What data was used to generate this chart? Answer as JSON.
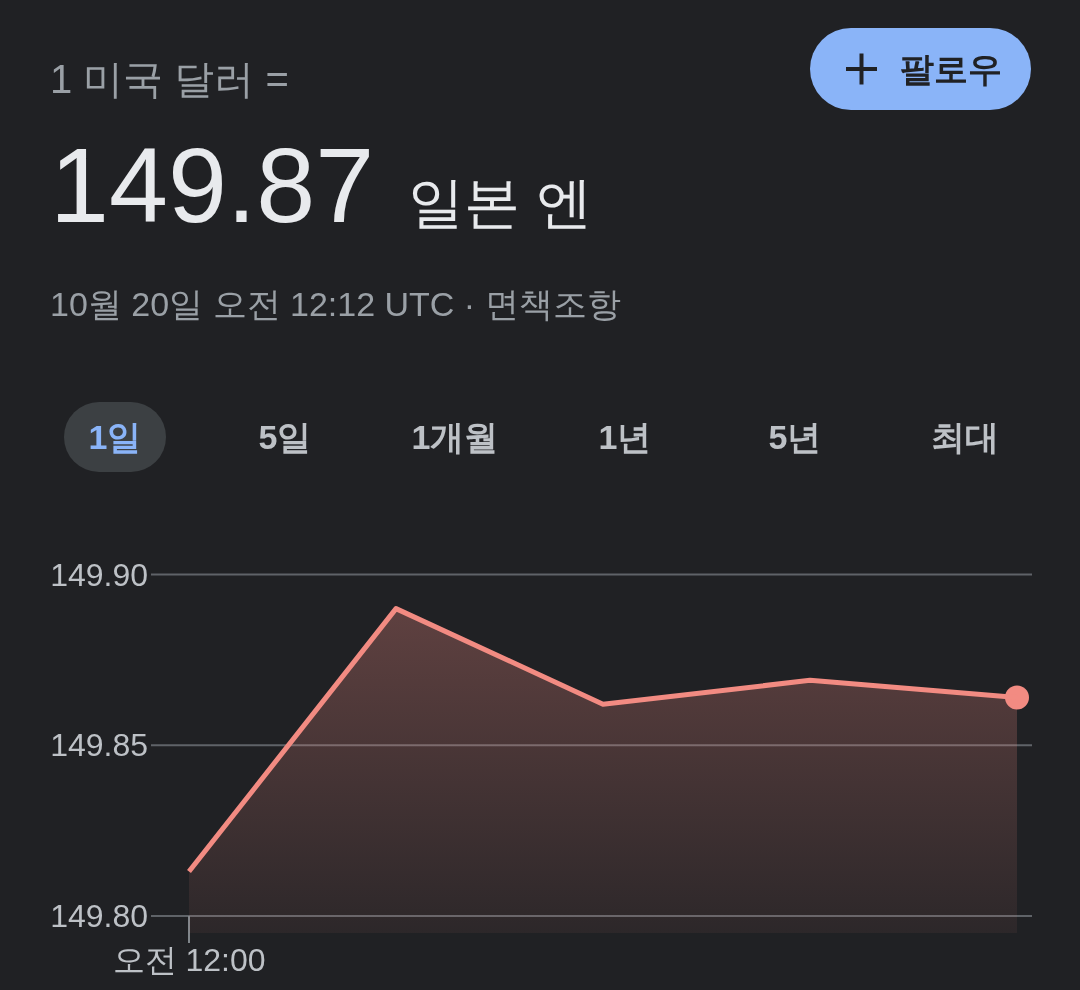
{
  "chart_data": {
    "type": "area",
    "title": "1 미국 달러 =",
    "annotations": [
      "149.87",
      "일본 엔",
      "10월 20일 오전 12:12 UTC · 면책조항",
      "팔로우",
      "1일",
      "5일",
      "1개월",
      "1년",
      "5년",
      "최대"
    ],
    "categories": [
      "오전 12:00",
      null,
      null,
      null,
      null
    ],
    "ylim": [
      149.795,
      149.9
    ],
    "yticks": [
      {
        "value": 149.8,
        "label": "149.80"
      },
      {
        "value": 149.85,
        "label": "149.85"
      },
      {
        "value": 149.9,
        "label": "149.90"
      }
    ],
    "grid": "y",
    "series": [
      {
        "type": "scatter",
        "color": "#f28b82",
        "marker": "circle",
        "values": [
          null,
          null,
          null,
          null,
          149.864
        ]
      },
      {
        "color": "#f28b82",
        "values": [
          149.813,
          149.89,
          149.862,
          149.869,
          149.864
        ]
      }
    ]
  }
}
